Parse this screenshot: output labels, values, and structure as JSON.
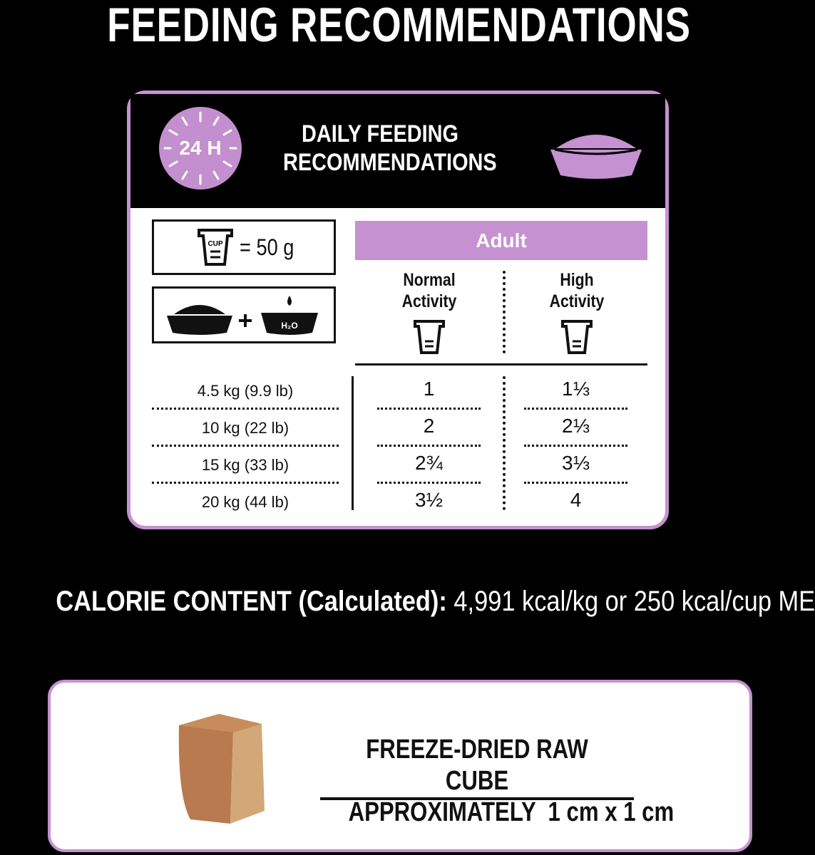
{
  "title": "FEEDING RECOMMENDATIONS",
  "card": {
    "clock_label": "24 H",
    "heading_line1": "DAILY FEEDING",
    "heading_line2": "RECOMMENDATIONS",
    "cup_label": "CUP",
    "cup_equals": "= 50 g",
    "water_label": "H₂O",
    "group_label": "Adult",
    "columns": [
      {
        "line1": "Normal",
        "line2": "Activity"
      },
      {
        "line1": "High",
        "line2": "Activity"
      }
    ],
    "rows": [
      {
        "weight": "4.5 kg (9.9 lb)",
        "normal": "1",
        "high": "1⅓"
      },
      {
        "weight": "10 kg (22 lb)",
        "normal": "2",
        "high": "2⅓"
      },
      {
        "weight": "15 kg (33 lb)",
        "normal": "2¾",
        "high": "3⅓"
      },
      {
        "weight": "20 kg (44 lb)",
        "normal": "3½",
        "high": "4"
      }
    ]
  },
  "calorie": {
    "label": "CALORIE CONTENT (Calculated):",
    "value": " 4,991 kcal/kg or 250 kcal/cup ME"
  },
  "cube": {
    "line1": "FREEZE-DRIED RAW CUBE",
    "line2": "APPROXIMATELY  1 cm x 1 cm"
  },
  "colors": {
    "accent": "#c591d0",
    "background": "#000000"
  }
}
